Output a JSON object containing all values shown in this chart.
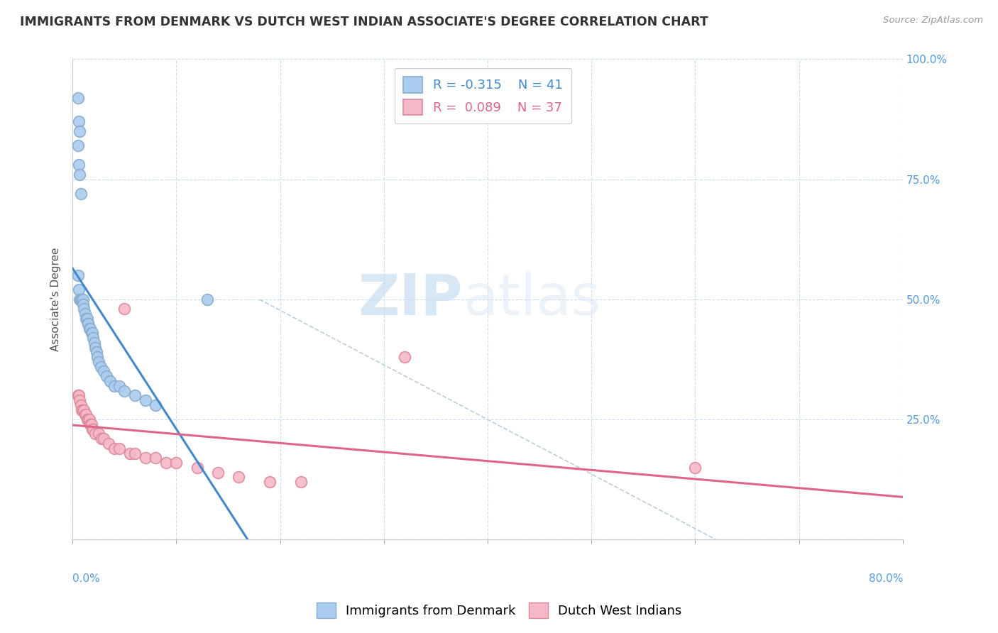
{
  "title": "IMMIGRANTS FROM DENMARK VS DUTCH WEST INDIAN ASSOCIATE'S DEGREE CORRELATION CHART",
  "source_text": "Source: ZipAtlas.com",
  "ylabel": "Associate's Degree",
  "xlim": [
    0.0,
    0.8
  ],
  "ylim": [
    0.0,
    1.0
  ],
  "xticks": [
    0.0,
    0.1,
    0.2,
    0.3,
    0.4,
    0.5,
    0.6,
    0.7,
    0.8
  ],
  "xticklabels_show": [
    "0.0%",
    "80.0%"
  ],
  "yticks": [
    0.0,
    0.25,
    0.5,
    0.75,
    1.0
  ],
  "yticklabels": [
    "",
    "25.0%",
    "50.0%",
    "75.0%",
    "100.0%"
  ],
  "blue_color": "#aaccee",
  "blue_edge": "#88aacc",
  "pink_color": "#f4b8c8",
  "pink_edge": "#dd8899",
  "blue_line_color": "#4488cc",
  "pink_line_color": "#dd6688",
  "diag_color": "#bbccdd",
  "blue_R": -0.315,
  "blue_N": 41,
  "pink_R": 0.089,
  "pink_N": 37,
  "watermark_zip": "ZIP",
  "watermark_atlas": "atlas",
  "blue_scatter_x": [
    0.005,
    0.006,
    0.007,
    0.005,
    0.006,
    0.007,
    0.008,
    0.005,
    0.006,
    0.007,
    0.008,
    0.009,
    0.01,
    0.01,
    0.011,
    0.012,
    0.013,
    0.014,
    0.015,
    0.015,
    0.016,
    0.017,
    0.018,
    0.019,
    0.02,
    0.021,
    0.022,
    0.023,
    0.024,
    0.025,
    0.027,
    0.03,
    0.033,
    0.036,
    0.04,
    0.045,
    0.05,
    0.06,
    0.07,
    0.08,
    0.13
  ],
  "blue_scatter_y": [
    0.92,
    0.87,
    0.85,
    0.82,
    0.78,
    0.76,
    0.72,
    0.55,
    0.52,
    0.5,
    0.5,
    0.5,
    0.5,
    0.49,
    0.48,
    0.47,
    0.46,
    0.46,
    0.45,
    0.45,
    0.44,
    0.44,
    0.43,
    0.43,
    0.42,
    0.41,
    0.4,
    0.39,
    0.38,
    0.37,
    0.36,
    0.35,
    0.34,
    0.33,
    0.32,
    0.32,
    0.31,
    0.3,
    0.29,
    0.28,
    0.5
  ],
  "pink_scatter_x": [
    0.005,
    0.006,
    0.007,
    0.008,
    0.009,
    0.01,
    0.011,
    0.012,
    0.013,
    0.014,
    0.015,
    0.016,
    0.017,
    0.018,
    0.019,
    0.02,
    0.022,
    0.025,
    0.028,
    0.03,
    0.035,
    0.04,
    0.045,
    0.05,
    0.055,
    0.06,
    0.07,
    0.08,
    0.09,
    0.1,
    0.12,
    0.14,
    0.16,
    0.19,
    0.22,
    0.32,
    0.6
  ],
  "pink_scatter_y": [
    0.3,
    0.3,
    0.29,
    0.28,
    0.27,
    0.27,
    0.27,
    0.26,
    0.26,
    0.25,
    0.25,
    0.25,
    0.24,
    0.24,
    0.23,
    0.23,
    0.22,
    0.22,
    0.21,
    0.21,
    0.2,
    0.19,
    0.19,
    0.48,
    0.18,
    0.18,
    0.17,
    0.17,
    0.16,
    0.16,
    0.15,
    0.14,
    0.13,
    0.12,
    0.12,
    0.38,
    0.15
  ],
  "background_color": "#ffffff",
  "grid_color": "#ccddee",
  "title_fontsize": 12.5,
  "axis_fontsize": 11,
  "tick_fontsize": 11,
  "legend_fontsize": 13
}
